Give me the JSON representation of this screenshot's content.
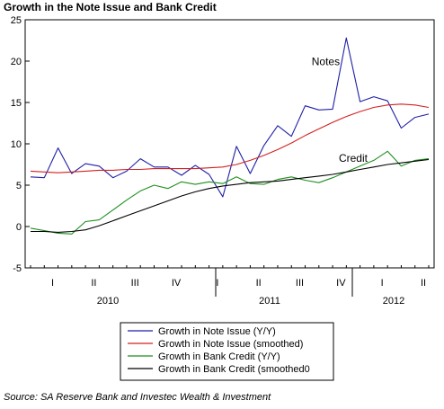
{
  "title": "Growth in the Note Issue and Bank Credit",
  "source": "Source: SA Reserve Bank and Investec Wealth & Investment",
  "chart_data": {
    "type": "line",
    "title": "Growth in the Note Issue and Bank Credit",
    "xlabel": "",
    "ylabel": "",
    "ylim": [
      -5,
      25
    ],
    "yticks": [
      -5,
      0,
      5,
      10,
      15,
      20,
      25
    ],
    "grid": false,
    "legend_position": "bottom-center",
    "quarter_labels": [
      "I",
      "II",
      "III",
      "IV",
      "I",
      "II",
      "III",
      "IV",
      "I",
      "II"
    ],
    "year_labels": [
      "2010",
      "2011",
      "2012"
    ],
    "annotations": [
      {
        "text": "Notes",
        "x": 21.5,
        "y": 19.5
      },
      {
        "text": "Credit",
        "x": 23.5,
        "y": 7.8
      }
    ],
    "x_months": [
      "2009-12",
      "2010-01",
      "2010-02",
      "2010-03",
      "2010-04",
      "2010-05",
      "2010-06",
      "2010-07",
      "2010-08",
      "2010-09",
      "2010-10",
      "2010-11",
      "2010-12",
      "2011-01",
      "2011-02",
      "2011-03",
      "2011-04",
      "2011-05",
      "2011-06",
      "2011-07",
      "2011-08",
      "2011-09",
      "2011-10",
      "2011-11",
      "2011-12",
      "2012-01",
      "2012-02",
      "2012-03",
      "2012-04",
      "2012-05"
    ],
    "series": [
      {
        "name": "Growth in Note Issue (Y/Y)",
        "color": "#1f1fa8",
        "values": [
          6.0,
          5.9,
          9.5,
          6.4,
          7.6,
          7.3,
          5.9,
          6.7,
          8.2,
          7.2,
          7.2,
          6.2,
          7.4,
          6.3,
          3.6,
          9.7,
          6.4,
          9.8,
          12.2,
          10.9,
          14.6,
          14.1,
          14.2,
          22.8,
          15.1,
          15.7,
          15.2,
          11.9,
          13.2,
          13.6
        ]
      },
      {
        "name": "Growth in Note Issue (smoothed)",
        "color": "#d42020",
        "values": [
          6.7,
          6.6,
          6.5,
          6.6,
          6.7,
          6.8,
          6.8,
          6.9,
          6.9,
          7.0,
          7.0,
          7.0,
          7.0,
          7.1,
          7.2,
          7.5,
          8.0,
          8.6,
          9.3,
          10.1,
          11.0,
          11.8,
          12.6,
          13.3,
          13.9,
          14.4,
          14.7,
          14.8,
          14.7,
          14.4
        ]
      },
      {
        "name": "Growth in Bank  Credit (Y/Y)",
        "color": "#1f8f1f",
        "values": [
          -0.2,
          -0.5,
          -0.8,
          -0.9,
          0.6,
          0.8,
          2.0,
          3.2,
          4.3,
          5.0,
          4.6,
          5.4,
          5.1,
          5.4,
          5.2,
          6.0,
          5.2,
          5.1,
          5.7,
          6.0,
          5.6,
          5.3,
          5.9,
          6.6,
          7.3,
          8.0,
          9.1,
          7.3,
          8.0,
          8.2
        ]
      },
      {
        "name": "Growth in Bank Credit (smoothed0",
        "color": "#000000",
        "values": [
          -0.6,
          -0.6,
          -0.7,
          -0.6,
          -0.4,
          0.1,
          0.7,
          1.3,
          1.9,
          2.5,
          3.1,
          3.7,
          4.2,
          4.6,
          4.9,
          5.1,
          5.3,
          5.4,
          5.5,
          5.7,
          5.9,
          6.1,
          6.3,
          6.6,
          6.9,
          7.2,
          7.5,
          7.7,
          7.9,
          8.1
        ]
      }
    ]
  }
}
